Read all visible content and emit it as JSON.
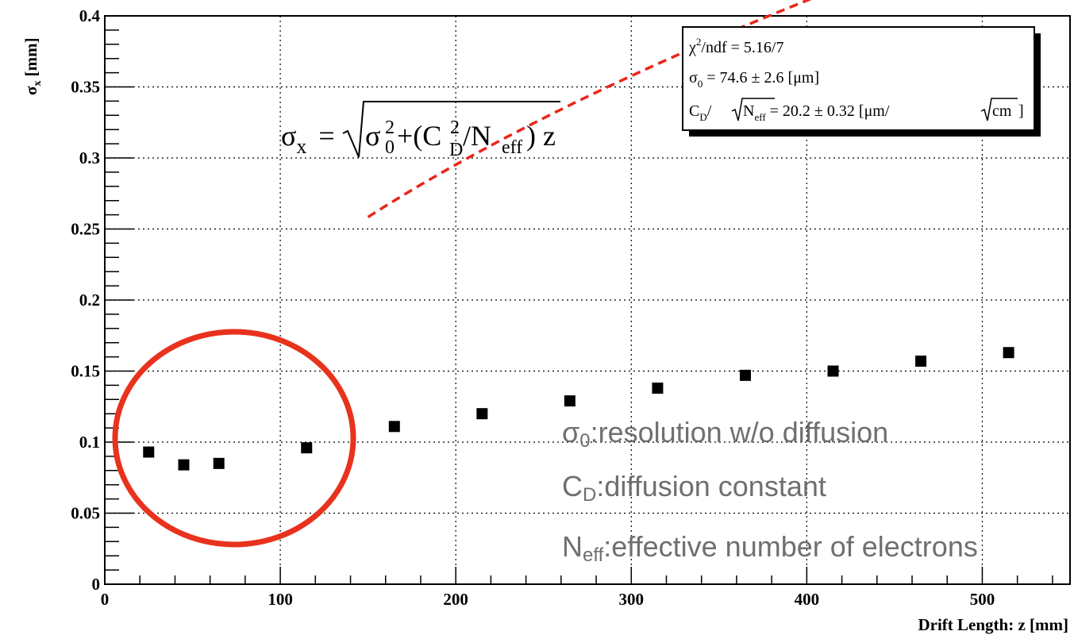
{
  "chart_data": {
    "type": "scatter",
    "xlabel": "Drift Length: z [mm]",
    "ylabel_main": "σ",
    "ylabel_sub": "x",
    "ylabel_unit": "[mm]",
    "xlim": [
      0,
      550
    ],
    "ylim": [
      0,
      0.4
    ],
    "x_major_ticks": [
      0,
      100,
      200,
      300,
      400,
      500
    ],
    "x_tick_labels": [
      "0",
      "100",
      "200",
      "300",
      "400",
      "500"
    ],
    "y_major_ticks": [
      0,
      0.05,
      0.1,
      0.15,
      0.2,
      0.25,
      0.3,
      0.35,
      0.4
    ],
    "y_tick_labels": [
      "0",
      "0.05",
      "0.1",
      "0.15",
      "0.2",
      "0.25",
      "0.3",
      "0.35",
      "0.4"
    ],
    "grid": true,
    "series": [
      {
        "x": [
          25,
          45,
          65,
          115,
          165,
          215,
          265,
          315,
          365,
          415,
          465,
          515
        ],
        "y": [
          0.093,
          0.084,
          0.085,
          0.096,
          0.111,
          0.12,
          0.129,
          0.138,
          0.147,
          0.15,
          0.157,
          0.163
        ],
        "color": "#000000"
      }
    ],
    "fit": {
      "sigma0_mm": 0.0746,
      "slope_coef": 0.0202,
      "x_range": [
        150,
        550
      ],
      "color": "#e8261b",
      "style": "dashed"
    },
    "stats_box": {
      "row1_a": "χ",
      "row1_sup": "2",
      "row1_b": "/ndf = 5.16/7",
      "row2_a": "σ",
      "row2_sub": "0",
      "row2_b": " =   74.6  ±  2.6 [μm]",
      "row3_a": "C",
      "row3_sub_d": "D",
      "row3_slash": "/",
      "row3_n": "N",
      "row3_sub_eff": "eff",
      "row3_b": " =   20.2  ± 0.32 [μm/",
      "row3_cm": "cm",
      "row3_end": "]"
    },
    "formula": {
      "lhs": "σ",
      "lhs_sub": "x",
      "eq": "=",
      "t1": "σ",
      "t1_sup": "2",
      "t1_sub": "0",
      "plus": "+(C",
      "t2_sup": "2",
      "t2_sub": "D",
      "slash": "/N",
      "n_sub": "eff",
      "tail": ") z"
    },
    "notes": [
      {
        "main": "σ",
        "sub": "0",
        "rest": ":resolution w/o diffusion"
      },
      {
        "main": "C",
        "sub": "D",
        "rest": ":diffusion constant"
      },
      {
        "main": "N",
        "sub": "eff",
        "rest": ":effective number of electrons"
      }
    ],
    "highlight_circle_color": "#e8321d"
  }
}
